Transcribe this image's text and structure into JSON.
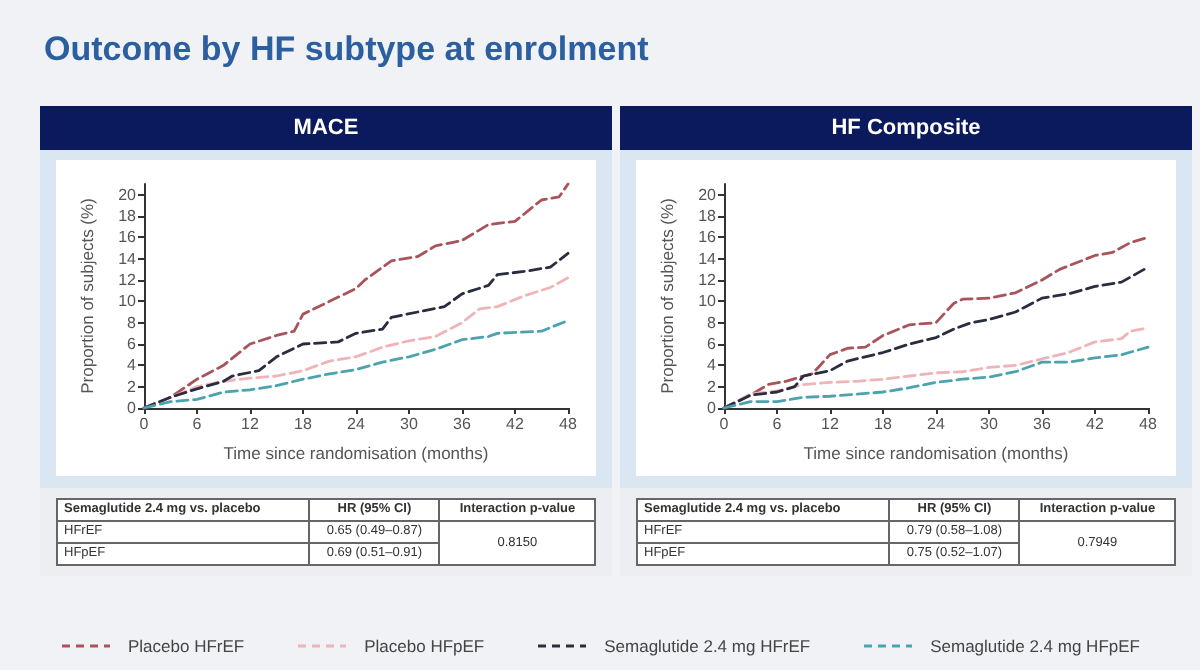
{
  "chart_data": [
    {
      "type": "line",
      "title": "Outcome by HF subtype at enrolment",
      "subtitle": "MACE",
      "xlabel": "Time since randomisation (months)",
      "ylabel": "Proportion of subjects (%)",
      "xlim": [
        0,
        48
      ],
      "ylim": [
        0,
        21
      ],
      "xticks": [
        0,
        6,
        12,
        18,
        24,
        30,
        36,
        42,
        48
      ],
      "yticks": [
        0,
        2,
        4,
        6,
        8,
        10,
        12,
        14,
        16,
        18,
        20
      ],
      "grid": false,
      "marker": "none",
      "line_style": "dashed",
      "legend": "bottom",
      "series": [
        {
          "name": "Placebo HFrEF",
          "color": "#a8545a",
          "x": [
            0,
            3,
            6,
            9,
            12,
            15,
            17,
            18,
            21,
            24,
            25,
            28,
            31,
            33,
            36,
            39,
            42,
            45,
            47,
            48
          ],
          "values": [
            0,
            1,
            2.7,
            4,
            6,
            6.8,
            7.2,
            8.8,
            10,
            11.2,
            12,
            13.8,
            14.2,
            15.2,
            15.7,
            17.2,
            17.5,
            19.5,
            19.8,
            21
          ]
        },
        {
          "name": "Placebo HFpEF",
          "color": "#f0b4b8",
          "x": [
            0,
            3,
            6,
            9,
            12,
            15,
            18,
            21,
            24,
            27,
            30,
            33,
            36,
            38,
            40,
            43,
            46,
            48
          ],
          "values": [
            0,
            1,
            2,
            2.5,
            2.8,
            3,
            3.5,
            4.4,
            4.8,
            5.7,
            6.3,
            6.7,
            8,
            9.3,
            9.5,
            10.5,
            11.3,
            12.2
          ]
        },
        {
          "name": "Semaglutide 2.4 mg HFrEF",
          "color": "#2a2c40",
          "x": [
            0,
            3,
            6,
            9,
            10,
            13,
            15,
            18,
            22,
            24,
            27,
            28,
            31,
            34,
            36,
            39,
            40,
            43,
            46,
            48
          ],
          "values": [
            0,
            1,
            1.8,
            2.5,
            3,
            3.5,
            4.8,
            6,
            6.2,
            7,
            7.4,
            8.5,
            9,
            9.5,
            10.7,
            11.5,
            12.5,
            12.8,
            13.2,
            14.5
          ]
        },
        {
          "name": "Semaglutide 2.4 mg HFpEF",
          "color": "#4aa3ad",
          "x": [
            0,
            3,
            6,
            9,
            12,
            15,
            18,
            21,
            24,
            27,
            30,
            33,
            36,
            39,
            40,
            45,
            48
          ],
          "values": [
            0,
            0.6,
            0.8,
            1.5,
            1.7,
            2.1,
            2.7,
            3.2,
            3.6,
            4.3,
            4.8,
            5.5,
            6.4,
            6.7,
            7,
            7.2,
            8.2
          ]
        }
      ],
      "annotations": [
        "Semaglutide 2.4 mg vs. placebo",
        "HR (95% CI)",
        "Interaction p-value",
        "HFrEF",
        "0.65 (0.49–0.87)",
        "HFpEF",
        "0.69 (0.51–0.91)",
        "0.8150"
      ]
    },
    {
      "type": "line",
      "subtitle": "HF Composite",
      "xlabel": "Time since randomisation (months)",
      "ylabel": "Proportion of subjects (%)",
      "xlim": [
        0,
        48
      ],
      "ylim": [
        0,
        21
      ],
      "xticks": [
        0,
        6,
        12,
        18,
        24,
        30,
        36,
        42,
        48
      ],
      "yticks": [
        0,
        2,
        4,
        6,
        8,
        10,
        12,
        14,
        16,
        18,
        20
      ],
      "grid": false,
      "marker": "none",
      "line_style": "dashed",
      "series": [
        {
          "color": "#a8545a",
          "x": [
            0,
            3,
            5,
            7,
            9,
            10,
            12,
            14,
            16,
            18,
            21,
            24,
            26,
            27,
            30,
            33,
            36,
            38,
            42,
            44,
            46,
            48
          ],
          "values": [
            0,
            1.2,
            2.2,
            2.5,
            3,
            3.2,
            5,
            5.6,
            5.7,
            6.8,
            7.8,
            8,
            9.8,
            10.2,
            10.3,
            10.8,
            12,
            13,
            14.3,
            14.6,
            15.5,
            16
          ]
        },
        {
          "color": "#f0b4b8",
          "x": [
            0,
            3,
            6,
            9,
            12,
            15,
            18,
            21,
            24,
            27,
            30,
            33,
            36,
            39,
            42,
            45,
            46,
            48
          ],
          "values": [
            0,
            1.3,
            1.6,
            2.2,
            2.4,
            2.5,
            2.7,
            3,
            3.3,
            3.4,
            3.8,
            4,
            4.6,
            5.2,
            6.2,
            6.5,
            7.2,
            7.5
          ]
        },
        {
          "color": "#2a2c40",
          "x": [
            0,
            3,
            6,
            8,
            9,
            12,
            14,
            18,
            21,
            24,
            26,
            28,
            30,
            33,
            36,
            39,
            42,
            45,
            48
          ],
          "values": [
            0,
            1.2,
            1.5,
            2,
            3,
            3.5,
            4.4,
            5.2,
            6,
            6.6,
            7.4,
            8,
            8.3,
            9,
            10.3,
            10.7,
            11.4,
            11.8,
            13.2
          ]
        },
        {
          "color": "#4aa3ad",
          "x": [
            0,
            3,
            6,
            9,
            12,
            15,
            18,
            21,
            24,
            27,
            30,
            33,
            36,
            39,
            42,
            45,
            48
          ],
          "values": [
            0,
            0.6,
            0.6,
            1,
            1.1,
            1.3,
            1.5,
            1.9,
            2.4,
            2.7,
            2.9,
            3.4,
            4.3,
            4.3,
            4.7,
            5,
            5.7
          ]
        }
      ],
      "annotations": [
        "Semaglutide 2.4 mg vs. placebo",
        "HR (95% CI)",
        "Interaction p-value",
        "HFrEF",
        "0.79 (0.58–1.08)",
        "HFpEF",
        "0.75 (0.52–1.07)",
        "0.7949"
      ]
    }
  ]
}
